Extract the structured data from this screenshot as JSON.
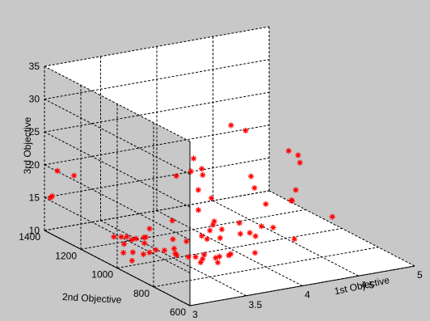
{
  "colors": {
    "figure_bg": "#c8c8c8",
    "axes_bg": "#ffffff",
    "marker": "#ff0000",
    "grid": "#000000"
  },
  "chart_data": {
    "type": "scatter",
    "subtype": "scatter3d",
    "marker": "asterisk",
    "grid": true,
    "title": "",
    "xlabel": "1st Objective",
    "ylabel": "2nd Objective",
    "zlabel": "3rd Objective",
    "xlim": [
      3,
      5
    ],
    "ylim": [
      600,
      1400
    ],
    "zlim": [
      10,
      35
    ],
    "xticks": [
      3,
      3.5,
      4,
      4.5,
      5
    ],
    "xtick_labels": [
      "3",
      "3.5",
      "4",
      "4.5",
      "5"
    ],
    "yticks": [
      600,
      800,
      1000,
      1200,
      1400
    ],
    "ytick_labels": [
      "600",
      "800",
      "1000",
      "1200",
      "1400"
    ],
    "zticks": [
      10,
      15,
      20,
      25,
      30,
      35
    ],
    "ztick_labels": [
      "10",
      "15",
      "20",
      "25",
      "30",
      "35"
    ],
    "points": [
      {
        "x": 3.02,
        "y": 1380,
        "z": 15.2
      },
      {
        "x": 3.02,
        "y": 1370,
        "z": 15.6
      },
      {
        "x": 3.05,
        "y": 1360,
        "z": 19.5
      },
      {
        "x": 3.15,
        "y": 1330,
        "z": 18.9
      },
      {
        "x": 3.21,
        "y": 1148,
        "z": 12.0
      },
      {
        "x": 3.25,
        "y": 1132,
        "z": 12.1
      },
      {
        "x": 3.28,
        "y": 1120,
        "z": 12.2
      },
      {
        "x": 3.3,
        "y": 1105,
        "z": 11.9
      },
      {
        "x": 3.22,
        "y": 1098,
        "z": 11.6
      },
      {
        "x": 3.3,
        "y": 1082,
        "z": 12.4
      },
      {
        "x": 3.35,
        "y": 1070,
        "z": 12.6
      },
      {
        "x": 3.4,
        "y": 1090,
        "z": 12.2
      },
      {
        "x": 3.34,
        "y": 1060,
        "z": 11.9
      },
      {
        "x": 3.12,
        "y": 1040,
        "z": 11.4
      },
      {
        "x": 3.18,
        "y": 1025,
        "z": 11.5
      },
      {
        "x": 3.25,
        "y": 1010,
        "z": 11.2
      },
      {
        "x": 3.28,
        "y": 995,
        "z": 11.6
      },
      {
        "x": 3.32,
        "y": 985,
        "z": 12.0
      },
      {
        "x": 3.38,
        "y": 975,
        "z": 11.9
      },
      {
        "x": 3.45,
        "y": 965,
        "z": 12.1
      },
      {
        "x": 3.1,
        "y": 980,
        "z": 11.1
      },
      {
        "x": 3.4,
        "y": 920,
        "z": 11.9
      },
      {
        "x": 3.42,
        "y": 940,
        "z": 11.8
      },
      {
        "x": 3.48,
        "y": 905,
        "z": 11.6
      },
      {
        "x": 3.52,
        "y": 890,
        "z": 11.7
      },
      {
        "x": 3.55,
        "y": 870,
        "z": 11.6
      },
      {
        "x": 3.5,
        "y": 850,
        "z": 11.5
      },
      {
        "x": 3.58,
        "y": 880,
        "z": 12.0
      },
      {
        "x": 3.65,
        "y": 860,
        "z": 11.6
      },
      {
        "x": 3.62,
        "y": 830,
        "z": 11.4
      },
      {
        "x": 3.7,
        "y": 870,
        "z": 11.5
      },
      {
        "x": 3.75,
        "y": 850,
        "z": 11.8
      },
      {
        "x": 3.52,
        "y": 1015,
        "z": 12.6
      },
      {
        "x": 3.6,
        "y": 990,
        "z": 12.4
      },
      {
        "x": 3.45,
        "y": 1100,
        "z": 13.2
      },
      {
        "x": 3.8,
        "y": 870,
        "z": 11.6
      },
      {
        "x": 3.8,
        "y": 1000,
        "z": 12.0
      },
      {
        "x": 3.9,
        "y": 990,
        "z": 12.0
      },
      {
        "x": 3.72,
        "y": 980,
        "z": 13.0
      },
      {
        "x": 3.62,
        "y": 1080,
        "z": 14.2
      },
      {
        "x": 3.76,
        "y": 960,
        "z": 14.0
      },
      {
        "x": 3.98,
        "y": 1030,
        "z": 12.5
      },
      {
        "x": 3.88,
        "y": 1010,
        "z": 14.3
      },
      {
        "x": 3.86,
        "y": 1005,
        "z": 13.9
      },
      {
        "x": 3.82,
        "y": 1060,
        "z": 15.5
      },
      {
        "x": 3.9,
        "y": 1110,
        "z": 17.6
      },
      {
        "x": 3.98,
        "y": 1200,
        "z": 18.9
      },
      {
        "x": 4.02,
        "y": 1210,
        "z": 20.6
      },
      {
        "x": 4.02,
        "y": 1160,
        "z": 18.8
      },
      {
        "x": 4.06,
        "y": 1190,
        "z": 19.2
      },
      {
        "x": 3.85,
        "y": 1200,
        "z": 18.6
      },
      {
        "x": 4.0,
        "y": 1100,
        "z": 16.2
      },
      {
        "x": 4.0,
        "y": 860,
        "z": 11.3
      },
      {
        "x": 4.08,
        "y": 990,
        "z": 12.1
      },
      {
        "x": 4.18,
        "y": 1000,
        "z": 11.8
      },
      {
        "x": 4.12,
        "y": 1020,
        "z": 13.2
      },
      {
        "x": 4.15,
        "y": 950,
        "z": 12.1
      },
      {
        "x": 4.3,
        "y": 1010,
        "z": 12.3
      },
      {
        "x": 4.42,
        "y": 1020,
        "z": 11.6
      },
      {
        "x": 4.42,
        "y": 1060,
        "z": 14.6
      },
      {
        "x": 4.4,
        "y": 1110,
        "z": 16.4
      },
      {
        "x": 4.45,
        "y": 1160,
        "z": 17.3
      },
      {
        "x": 4.48,
        "y": 940,
        "z": 10.8
      },
      {
        "x": 4.45,
        "y": 1270,
        "z": 23.5
      },
      {
        "x": 4.58,
        "y": 1270,
        "z": 22.3
      },
      {
        "x": 4.68,
        "y": 1080,
        "z": 14.1
      },
      {
        "x": 4.7,
        "y": 1090,
        "z": 13.8
      },
      {
        "x": 4.8,
        "y": 1130,
        "z": 14.6
      },
      {
        "x": 4.85,
        "y": 1200,
        "z": 19.4
      },
      {
        "x": 4.95,
        "y": 1200,
        "z": 17.3
      },
      {
        "x": 4.95,
        "y": 1210,
        "z": 18.3
      },
      {
        "x": 4.85,
        "y": 960,
        "z": 12.8
      }
    ]
  }
}
